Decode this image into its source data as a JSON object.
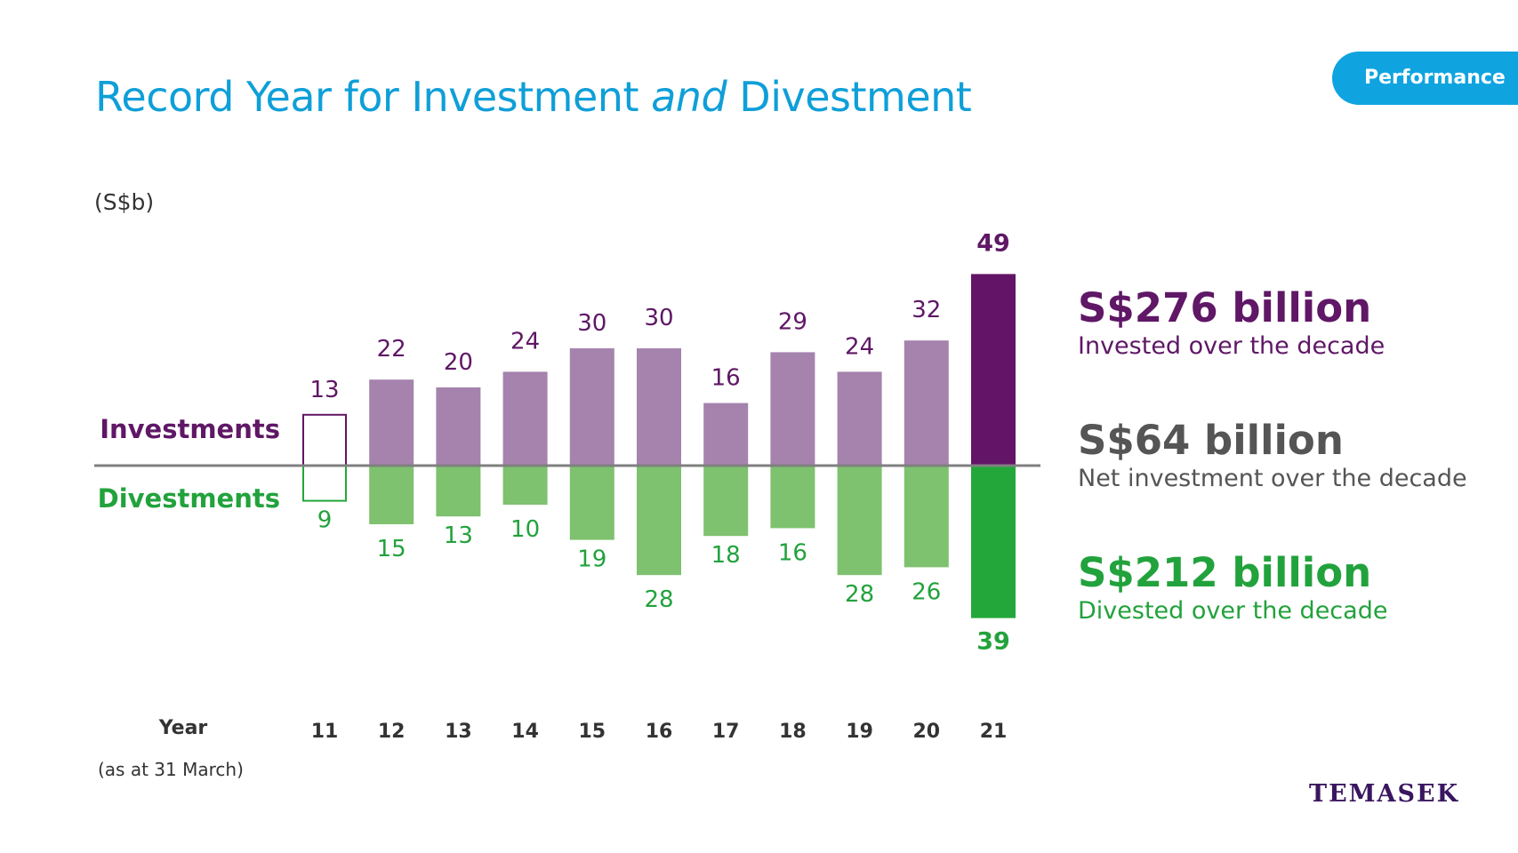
{
  "header": {
    "title_part1": "Record Year for Investment ",
    "title_emph": "and",
    "title_part2": " Divestment",
    "badge": "Performance"
  },
  "unit_label": "(S$b)",
  "legend": {
    "investments": "Investments",
    "divestments": "Divestments"
  },
  "axis": {
    "year_label": "Year",
    "as_at": "(as at 31 March)"
  },
  "summary": {
    "invested": {
      "value": "S$276 billion",
      "caption": "Invested over the decade"
    },
    "net": {
      "value": "S$64 billion",
      "caption": "Net investment over the decade"
    },
    "divested": {
      "value": "S$212 billion",
      "caption": "Divested over the decade"
    }
  },
  "logo_text": "TEMASEK",
  "colors": {
    "investment": "#a583ad",
    "investment_highlight": "#631466",
    "investment_label": "#5f1766",
    "divestment": "#7ec16e",
    "divestment_highlight": "#23a73a",
    "divestment_label": "#22a23c",
    "baseline": "#808080",
    "title": "#0f9fd8",
    "badge": "#0fa4e0"
  },
  "chart_data": {
    "type": "bar",
    "categories": [
      "11",
      "12",
      "13",
      "14",
      "15",
      "16",
      "17",
      "18",
      "19",
      "20",
      "21"
    ],
    "series": [
      {
        "name": "Investments",
        "values": [
          13,
          22,
          20,
          24,
          30,
          30,
          16,
          29,
          24,
          32,
          49
        ]
      },
      {
        "name": "Divestments",
        "values": [
          9,
          15,
          13,
          10,
          19,
          28,
          18,
          16,
          28,
          26,
          39
        ]
      }
    ],
    "first_year_outlined": true,
    "last_year_highlighted": true,
    "xlabel": "Year",
    "ylabel": "(S$b)"
  }
}
